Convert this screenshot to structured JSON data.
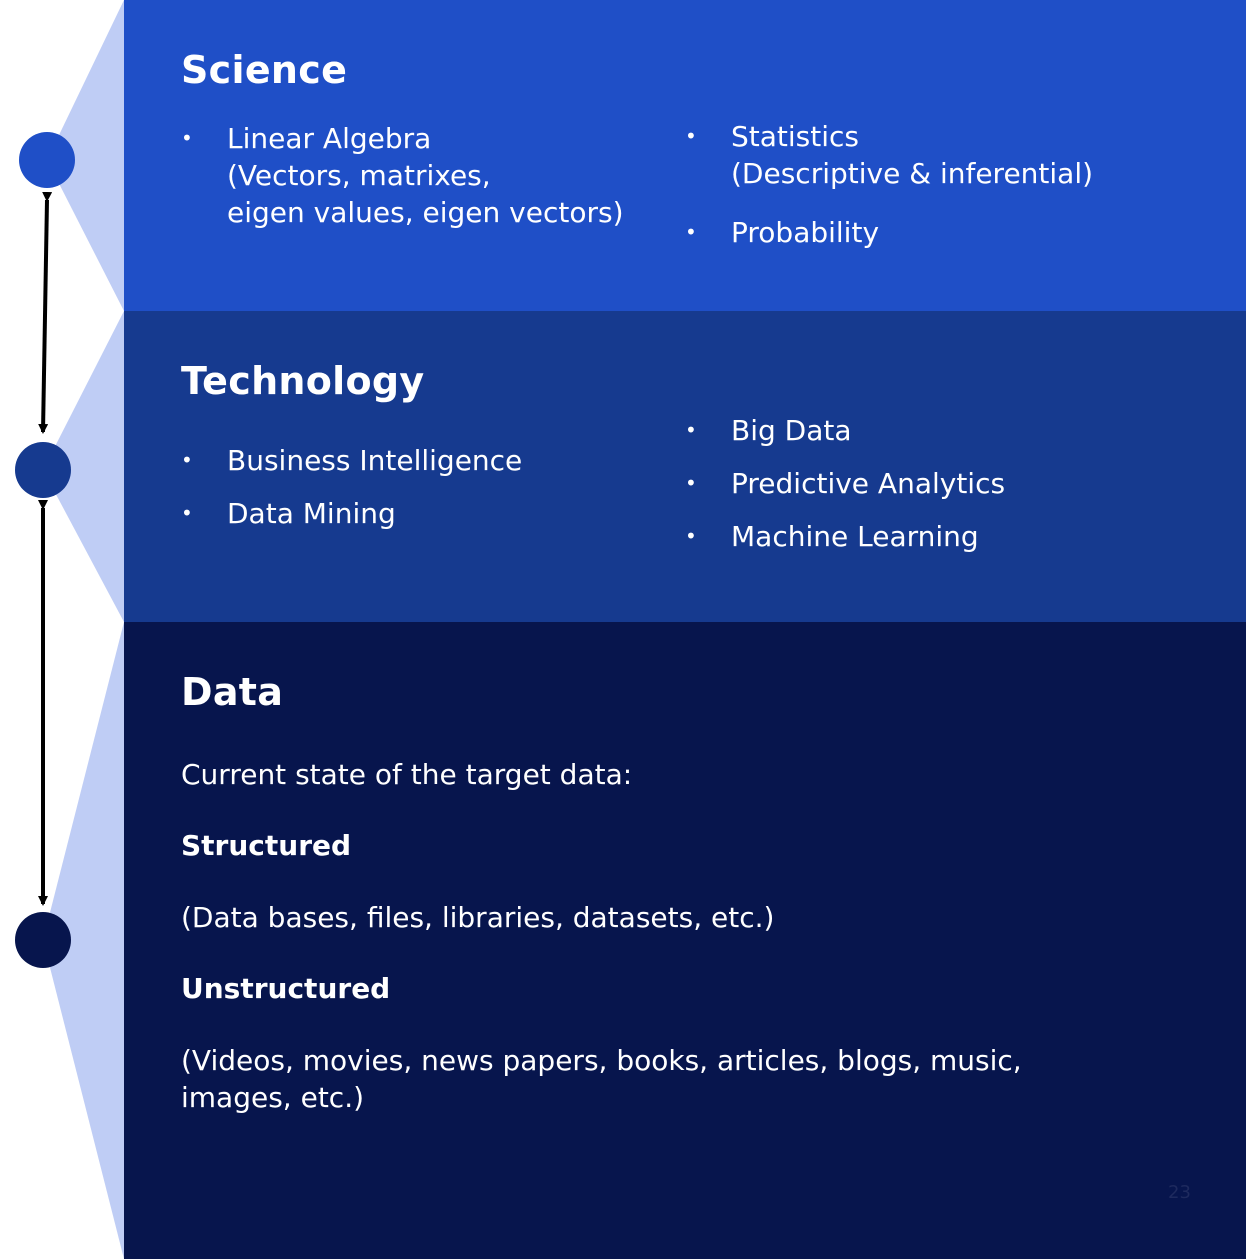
{
  "science": {
    "title": "Science",
    "left_items": [
      "Linear Algebra\n(Vectors, matrixes,\neigen values, eigen vectors)"
    ],
    "right_items": [
      "Statistics\n(Descriptive & inferential)",
      "Probability"
    ]
  },
  "technology": {
    "title": "Technology",
    "left_items": [
      "Business Intelligence",
      "Data Mining"
    ],
    "right_items": [
      "Big Data",
      "Predictive Analytics",
      "Machine Learning"
    ]
  },
  "data": {
    "title": "Data",
    "intro": "Current state of the target data:",
    "structured_heading": "Structured",
    "structured_text": "(Data bases, files, libraries, datasets, etc.)",
    "unstructured_heading": "Unstructured",
    "unstructured_text": "(Videos, movies, news papers, books, articles, blogs, music,\nimages, etc.)",
    "page_number": "23"
  },
  "colors": {
    "science_bg": "#1f4fc7",
    "technology_bg": "#163a8f",
    "data_bg": "#07154d",
    "wedge": "#bfcdf5",
    "node_science": "#1f4fc7",
    "node_technology": "#163a8f",
    "node_data": "#07154d"
  }
}
